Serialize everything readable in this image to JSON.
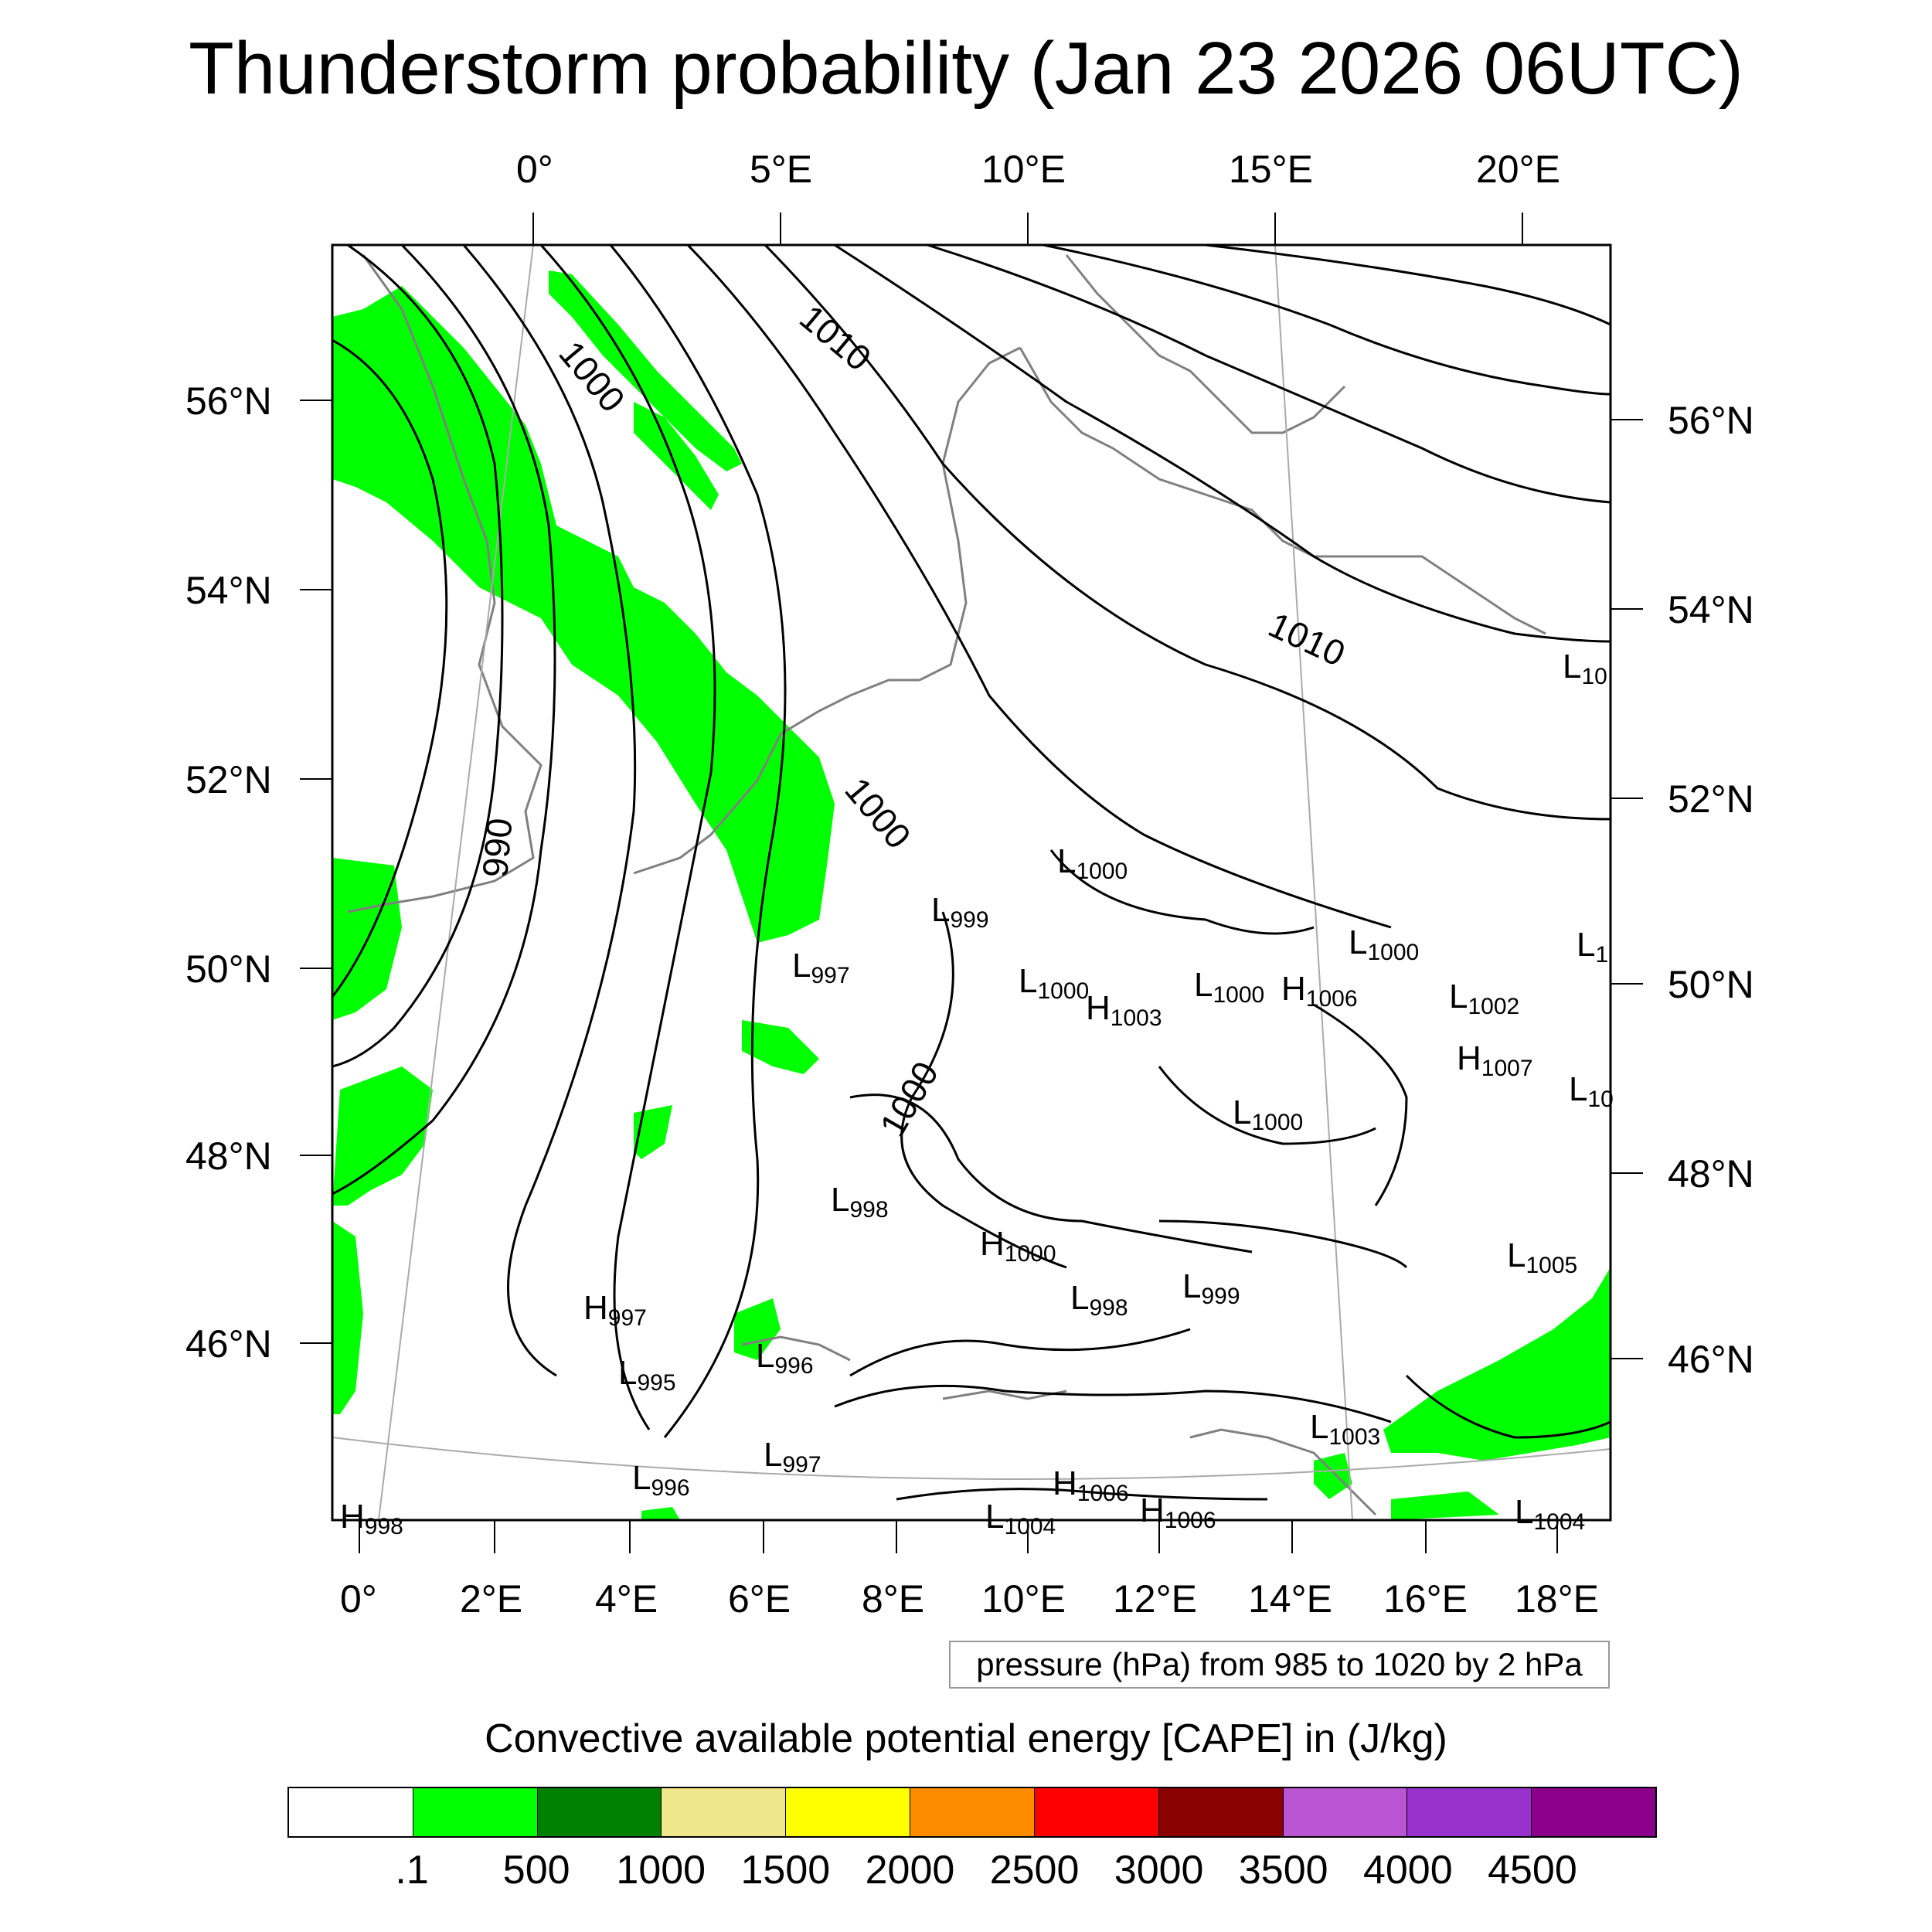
{
  "title": "Thunderstorm probability (Jan 23 2026 06UTC)",
  "top_lon_labels": [
    "0°",
    "5°E",
    "10°E",
    "15°E",
    "20°E"
  ],
  "bottom_lon_labels": [
    "0°",
    "2°E",
    "4°E",
    "6°E",
    "8°E",
    "10°E",
    "12°E",
    "14°E",
    "16°E",
    "18°E"
  ],
  "left_lat_labels": [
    "56°N",
    "54°N",
    "52°N",
    "50°N",
    "48°N",
    "46°N"
  ],
  "right_lat_labels": [
    "56°N",
    "54°N",
    "52°N",
    "50°N",
    "48°N",
    "46°N"
  ],
  "contour_labels": [
    "1010",
    "1000",
    "1010",
    "1000",
    "990",
    "1000"
  ],
  "pressure_centers": [
    {
      "type": "L",
      "value": "1000"
    },
    {
      "type": "L",
      "value": "999"
    },
    {
      "type": "L",
      "value": "997"
    },
    {
      "type": "L",
      "value": "1000"
    },
    {
      "type": "H",
      "value": "1003"
    },
    {
      "type": "L",
      "value": "1000"
    },
    {
      "type": "H",
      "value": "1006"
    },
    {
      "type": "L",
      "value": "1000"
    },
    {
      "type": "L",
      "value": "1002"
    },
    {
      "type": "H",
      "value": "1007"
    },
    {
      "type": "L",
      "value": "1000"
    },
    {
      "type": "L",
      "value": "998"
    },
    {
      "type": "H",
      "value": "1000"
    },
    {
      "type": "L",
      "value": "998"
    },
    {
      "type": "L",
      "value": "999"
    },
    {
      "type": "H",
      "value": "997"
    },
    {
      "type": "L",
      "value": "995"
    },
    {
      "type": "L",
      "value": "996"
    },
    {
      "type": "L",
      "value": "997"
    },
    {
      "type": "L",
      "value": "996"
    },
    {
      "type": "H",
      "value": "1006"
    },
    {
      "type": "L",
      "value": "1003"
    },
    {
      "type": "L",
      "value": "1005"
    },
    {
      "type": "L",
      "value": "10"
    },
    {
      "type": "L",
      "value": "1"
    },
    {
      "type": "L",
      "value": "10"
    },
    {
      "type": "L",
      "value": "1004"
    },
    {
      "type": "H",
      "value": "1006"
    },
    {
      "type": "L",
      "value": "1004"
    },
    {
      "type": "H",
      "value": "998"
    }
  ],
  "pressure_note": "pressure (hPa) from 985 to 1020 by 2 hPa",
  "cape_title": "Convective available potential energy [CAPE] in (J/kg)",
  "colorbar": {
    "colors": [
      "#ffffff",
      "#00ff00",
      "#008000",
      "#f0e68c",
      "#ffff00",
      "#ff8c00",
      "#ff0000",
      "#8b0000",
      "#ba55d3",
      "#9932cc",
      "#8b008b"
    ],
    "labels": [
      ".1",
      "500",
      "1000",
      "1500",
      "2000",
      "2500",
      "3000",
      "3500",
      "4000",
      "4500"
    ]
  },
  "map_colors": {
    "cape_fill": "#00ff00",
    "isobar": "#000000",
    "coastline": "#808080",
    "grid": "#aaaaaa"
  }
}
